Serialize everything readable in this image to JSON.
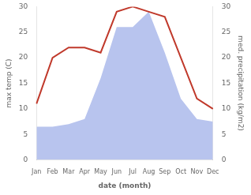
{
  "chart_data": {
    "type": "line",
    "xlabel": "date (month)",
    "ylabel": "max temp (C)",
    "y2label": "med. precipitation (kg/m2)",
    "categories": [
      "Jan",
      "Feb",
      "Mar",
      "Apr",
      "May",
      "Jun",
      "Jul",
      "Aug",
      "Sep",
      "Oct",
      "Nov",
      "Dec"
    ],
    "series": [
      {
        "type": "area",
        "axis": "y2",
        "color": "#b8c4ee",
        "values": [
          6.5,
          6.5,
          7,
          8,
          16,
          26,
          26,
          29,
          21,
          12,
          8,
          7.5
        ]
      },
      {
        "type": "line",
        "color": "#c0392b",
        "values": [
          11,
          20,
          22,
          22,
          21,
          29,
          30,
          29,
          28,
          20,
          12,
          10
        ]
      }
    ],
    "ylim": [
      0,
      30
    ],
    "yticks": [
      0,
      5,
      10,
      15,
      20,
      25,
      30
    ],
    "y2lim": [
      0,
      30
    ],
    "y2ticks": [
      0,
      5,
      10,
      15,
      20,
      25,
      30
    ],
    "grid": false
  }
}
